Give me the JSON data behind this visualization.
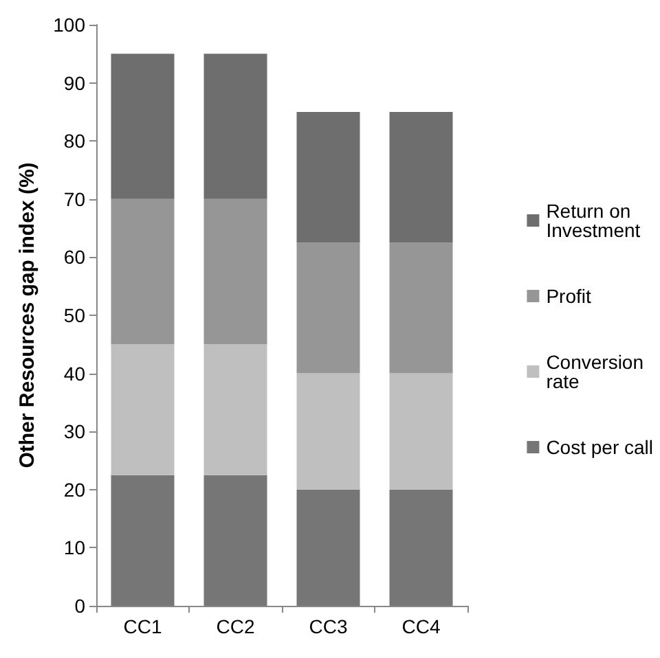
{
  "chart_data": {
    "type": "bar",
    "stacked": true,
    "ylabel": "Other Resources gap index (%)",
    "categories": [
      "CC1",
      "CC2",
      "CC3",
      "CC4"
    ],
    "series": [
      {
        "name": "Cost per call",
        "color": "#767676",
        "values": [
          22.5,
          22.5,
          20,
          20
        ]
      },
      {
        "name": "Conversion rate",
        "color": "#bfbfbf",
        "values": [
          22.5,
          22.5,
          20,
          20
        ]
      },
      {
        "name": "Profit",
        "color": "#969696",
        "values": [
          25,
          25,
          22.5,
          22.5
        ]
      },
      {
        "name": "Return on Investment",
        "color": "#6e6e6e",
        "values": [
          25,
          25,
          22.5,
          22.5
        ]
      }
    ],
    "ylim": [
      0,
      100
    ],
    "yticks": [
      0,
      10,
      20,
      30,
      40,
      50,
      60,
      70,
      80,
      90,
      100
    ],
    "grid": false,
    "legend": "right"
  }
}
